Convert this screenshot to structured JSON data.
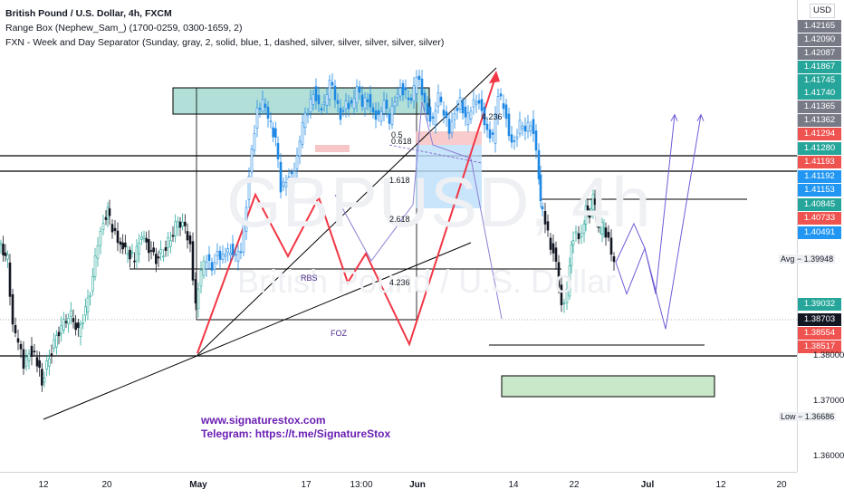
{
  "header": {
    "title": "British Pound / U.S. Dollar, 4h, FXCM",
    "indicator1": "Range Box (Nephew_Sam_) (1700-0259, 0300-1659, 2)",
    "indicator2": "FXN - Week and Day Separator (Sunday, gray, 2, solid, blue, 1, dashed, silver, silver, silver, silver, silver)"
  },
  "watermark": {
    "symbol": "GBPUSD, 4h",
    "name": "British Pound / U.S. Dollar"
  },
  "credit": {
    "line1": "www.signaturestox.com",
    "line2": "Telegram: https://t.me/SignatureStox"
  },
  "currency_button": "USD",
  "annotations": {
    "fib_0_5": "0.5",
    "fib_0_618": "0.618",
    "fib_1_618": "1.618",
    "fib_2_618": "2.618",
    "fib_4_236_top": "4.236",
    "fib_4_236_mid": "4.236",
    "rbs": "RBS",
    "foz": "FOZ"
  },
  "price_tags": [
    {
      "label": "1.42165",
      "color": "#787b86"
    },
    {
      "label": "1.42090",
      "color": "#787b86"
    },
    {
      "label": "1.42087",
      "color": "#787b86"
    },
    {
      "label": "1.41867",
      "color": "#26a69a"
    },
    {
      "label": "1.41745",
      "color": "#26a69a"
    },
    {
      "label": "1.41740",
      "color": "#26a69a"
    },
    {
      "label": "1.41365",
      "color": "#787b86"
    },
    {
      "label": "1.41362",
      "color": "#787b86"
    },
    {
      "label": "1.41294",
      "color": "#ef5350"
    },
    {
      "label": "1.41280",
      "color": "#26a69a"
    },
    {
      "label": "1.41193",
      "color": "#ef5350"
    },
    {
      "label": "1.41192",
      "color": "#2196f3"
    },
    {
      "label": "1.41153",
      "color": "#2196f3"
    },
    {
      "label": "1.40845",
      "color": "#26a69a"
    },
    {
      "label": "1.40733",
      "color": "#ef5350"
    },
    {
      "label": "1.40491",
      "color": "#2196f3"
    },
    {
      "label": "1.39032",
      "color": "#26a69a"
    },
    {
      "label": "1.38703",
      "color": "#131722"
    },
    {
      "label": "1.38554",
      "color": "#ef5350"
    },
    {
      "label": "1.38517",
      "color": "#ef5350"
    }
  ],
  "avg_label": "Avg − 1.39948",
  "low_label": "Low − 1.36686",
  "chart_data": {
    "type": "candlestick",
    "title": "British Pound / U.S. Dollar, 4h, FXCM",
    "ylim": [
      1.356,
      1.4245
    ],
    "y_ticks": [
      "1.36000",
      "1.37000",
      "1.38000"
    ],
    "x_ticks": [
      "12",
      "20",
      "May",
      "17",
      "13:00",
      "Jun",
      "14",
      "22",
      "Jul",
      "12",
      "20"
    ],
    "key_levels": [
      1.4128,
      1.4119,
      1.4085,
      1.3995,
      1.3856,
      1.38
    ],
    "last_price": 1.38703,
    "low": 1.36686,
    "average": 1.39948,
    "close_path": [
      [
        0,
        1.39
      ],
      [
        10,
        1.388
      ],
      [
        16,
        1.378
      ],
      [
        22,
        1.376
      ],
      [
        28,
        1.373
      ],
      [
        34,
        1.375
      ],
      [
        40,
        1.3745
      ],
      [
        48,
        1.3705
      ],
      [
        56,
        1.374
      ],
      [
        64,
        1.377
      ],
      [
        72,
        1.379
      ],
      [
        80,
        1.38
      ],
      [
        88,
        1.3775
      ],
      [
        96,
        1.3805
      ],
      [
        104,
        1.385
      ],
      [
        110,
        1.3905
      ],
      [
        116,
        1.3935
      ],
      [
        120,
        1.395
      ],
      [
        126,
        1.392
      ],
      [
        132,
        1.391
      ],
      [
        140,
        1.389
      ],
      [
        150,
        1.388
      ],
      [
        158,
        1.3915
      ],
      [
        166,
        1.3895
      ],
      [
        174,
        1.388
      ],
      [
        182,
        1.389
      ],
      [
        190,
        1.391
      ],
      [
        198,
        1.3935
      ],
      [
        206,
        1.3925
      ],
      [
        212,
        1.39
      ],
      [
        218,
        1.381
      ],
      [
        224,
        1.386
      ],
      [
        230,
        1.388
      ],
      [
        236,
        1.387
      ],
      [
        242,
        1.389
      ],
      [
        248,
        1.388
      ],
      [
        256,
        1.3895
      ],
      [
        262,
        1.388
      ],
      [
        268,
        1.389
      ],
      [
        274,
        1.396
      ],
      [
        280,
        1.404
      ],
      [
        286,
        1.409
      ],
      [
        292,
        1.41
      ],
      [
        298,
        1.408
      ],
      [
        306,
        1.405
      ],
      [
        312,
        1.398
      ],
      [
        318,
        1.3995
      ],
      [
        324,
        1.4
      ],
      [
        330,
        1.402
      ],
      [
        336,
        1.407
      ],
      [
        342,
        1.409
      ],
      [
        348,
        1.412
      ],
      [
        354,
        1.41
      ],
      [
        360,
        1.4095
      ],
      [
        366,
        1.413
      ],
      [
        372,
        1.411
      ],
      [
        378,
        1.4085
      ],
      [
        384,
        1.4105
      ],
      [
        390,
        1.4095
      ],
      [
        396,
        1.412
      ],
      [
        402,
        1.41
      ],
      [
        408,
        1.411
      ],
      [
        414,
        1.409
      ],
      [
        420,
        1.408
      ],
      [
        426,
        1.41
      ],
      [
        432,
        1.4075
      ],
      [
        438,
        1.411
      ],
      [
        444,
        1.4125
      ],
      [
        450,
        1.4115
      ],
      [
        456,
        1.41
      ],
      [
        462,
        1.414
      ],
      [
        468,
        1.412
      ],
      [
        474,
        1.409
      ],
      [
        480,
        1.4075
      ],
      [
        486,
        1.411
      ],
      [
        492,
        1.4085
      ],
      [
        498,
        1.4065
      ],
      [
        504,
        1.409
      ],
      [
        510,
        1.4105
      ],
      [
        516,
        1.4075
      ],
      [
        522,
        1.409
      ],
      [
        528,
        1.411
      ],
      [
        534,
        1.4095
      ],
      [
        540,
        1.406
      ],
      [
        546,
        1.405
      ],
      [
        552,
        1.411
      ],
      [
        558,
        1.41
      ],
      [
        564,
        1.406
      ],
      [
        570,
        1.4045
      ],
      [
        576,
        1.407
      ],
      [
        582,
        1.406
      ],
      [
        588,
        1.4075
      ],
      [
        594,
        1.404
      ],
      [
        598,
        1.396
      ],
      [
        604,
        1.393
      ],
      [
        610,
        1.39
      ],
      [
        616,
        1.388
      ],
      [
        622,
        1.381
      ],
      [
        628,
        1.383
      ],
      [
        632,
        1.39
      ],
      [
        638,
        1.392
      ],
      [
        644,
        1.391
      ],
      [
        648,
        1.395
      ],
      [
        652,
        1.3945
      ],
      [
        656,
        1.3965
      ],
      [
        660,
        1.394
      ],
      [
        664,
        1.392
      ],
      [
        668,
        1.393
      ],
      [
        674,
        1.3905
      ],
      [
        680,
        1.387
      ]
    ],
    "projection_path": [
      [
        680,
        1.3875
      ],
      [
        692,
        1.383
      ],
      [
        712,
        1.3895
      ],
      [
        735,
        1.378
      ],
      [
        774,
        1.4085
      ]
    ]
  }
}
